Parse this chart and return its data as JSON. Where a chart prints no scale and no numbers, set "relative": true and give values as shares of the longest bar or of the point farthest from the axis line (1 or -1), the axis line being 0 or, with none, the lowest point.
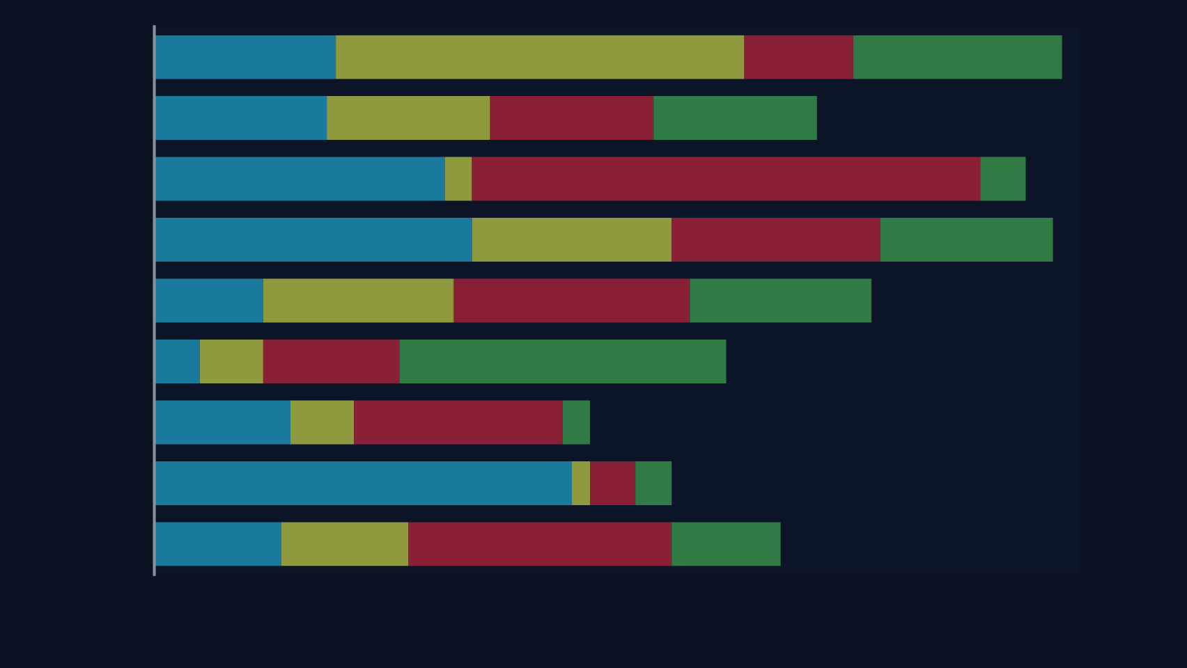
{
  "chart_data": {
    "type": "bar",
    "orientation": "horizontal",
    "stacked": true,
    "relative": true,
    "categories": [
      null,
      null,
      null,
      null,
      null,
      null,
      null,
      null,
      null
    ],
    "series": [
      {
        "color": "#1a7a9e",
        "values": [
          0.2,
          0.19,
          0.32,
          0.35,
          0.12,
          0.05,
          0.15,
          0.46,
          0.14
        ]
      },
      {
        "color": "#8f9a3e",
        "values": [
          0.45,
          0.18,
          0.03,
          0.22,
          0.21,
          0.07,
          0.07,
          0.02,
          0.14
        ]
      },
      {
        "color": "#8a2035",
        "values": [
          0.12,
          0.18,
          0.56,
          0.23,
          0.26,
          0.15,
          0.23,
          0.05,
          0.29
        ]
      },
      {
        "color": "#2f7a45",
        "values": [
          0.23,
          0.18,
          0.05,
          0.19,
          0.2,
          0.36,
          0.03,
          0.04,
          0.12
        ]
      }
    ]
  }
}
